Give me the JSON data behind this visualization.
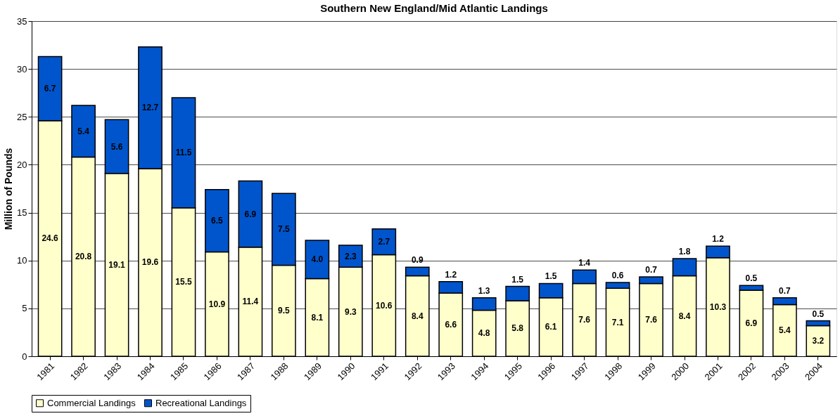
{
  "chart_data": {
    "type": "bar",
    "title": "Southern New England/Mid Atlantic Landings",
    "ylabel": "Million of Pounds",
    "categories": [
      "1981",
      "1982",
      "1983",
      "1984",
      "1985",
      "1986",
      "1987",
      "1988",
      "1989",
      "1990",
      "1991",
      "1992",
      "1993",
      "1994",
      "1995",
      "1996",
      "1997",
      "1998",
      "1999",
      "2000",
      "2001",
      "2002",
      "2003",
      "2004"
    ],
    "series": [
      {
        "name": "Commercial Landings",
        "color": "#ffffcc",
        "values": [
          24.6,
          20.8,
          19.1,
          19.6,
          15.5,
          10.9,
          11.4,
          9.5,
          8.1,
          9.3,
          10.6,
          8.4,
          6.6,
          4.8,
          5.8,
          6.1,
          7.6,
          7.1,
          7.6,
          8.4,
          10.3,
          6.9,
          5.4,
          3.2
        ],
        "value_labels": [
          "24.6",
          "20.8",
          "19.1",
          "19.6",
          "15.5",
          "10.9",
          "11.4",
          "9.5",
          "8.1",
          "9.3",
          "10.6",
          "8.4",
          "6.6",
          "4.8",
          "5.8",
          "6.1",
          "7.6",
          "7.1",
          "7.6",
          "8.4",
          "10.3",
          "6.9",
          "5.4",
          "3.2"
        ]
      },
      {
        "name": "Recreational Landings",
        "color": "#0055cc",
        "values": [
          6.7,
          5.4,
          5.6,
          12.7,
          11.5,
          6.5,
          6.9,
          7.5,
          4.0,
          2.3,
          2.7,
          0.9,
          1.2,
          1.3,
          1.5,
          1.5,
          1.4,
          0.6,
          0.7,
          1.8,
          1.2,
          0.5,
          0.7,
          0.5
        ],
        "value_labels": [
          "6.7",
          "5.4",
          "5.6",
          "12.7",
          "11.5",
          "6.5",
          "6.9",
          "7.5",
          "4.0",
          "2.3",
          "2.7",
          "0.9",
          "1.2",
          "1.3",
          "1.5",
          "1.5",
          "1.4",
          "0.6",
          "0.7",
          "1.8",
          "1.2",
          "0.5",
          "0.7",
          "0.5"
        ]
      }
    ],
    "stacked": true,
    "ylim": [
      0,
      35
    ],
    "yticks": [
      0,
      5,
      10,
      15,
      20,
      25,
      30,
      35
    ],
    "grid": "y",
    "legend": "bottom"
  }
}
